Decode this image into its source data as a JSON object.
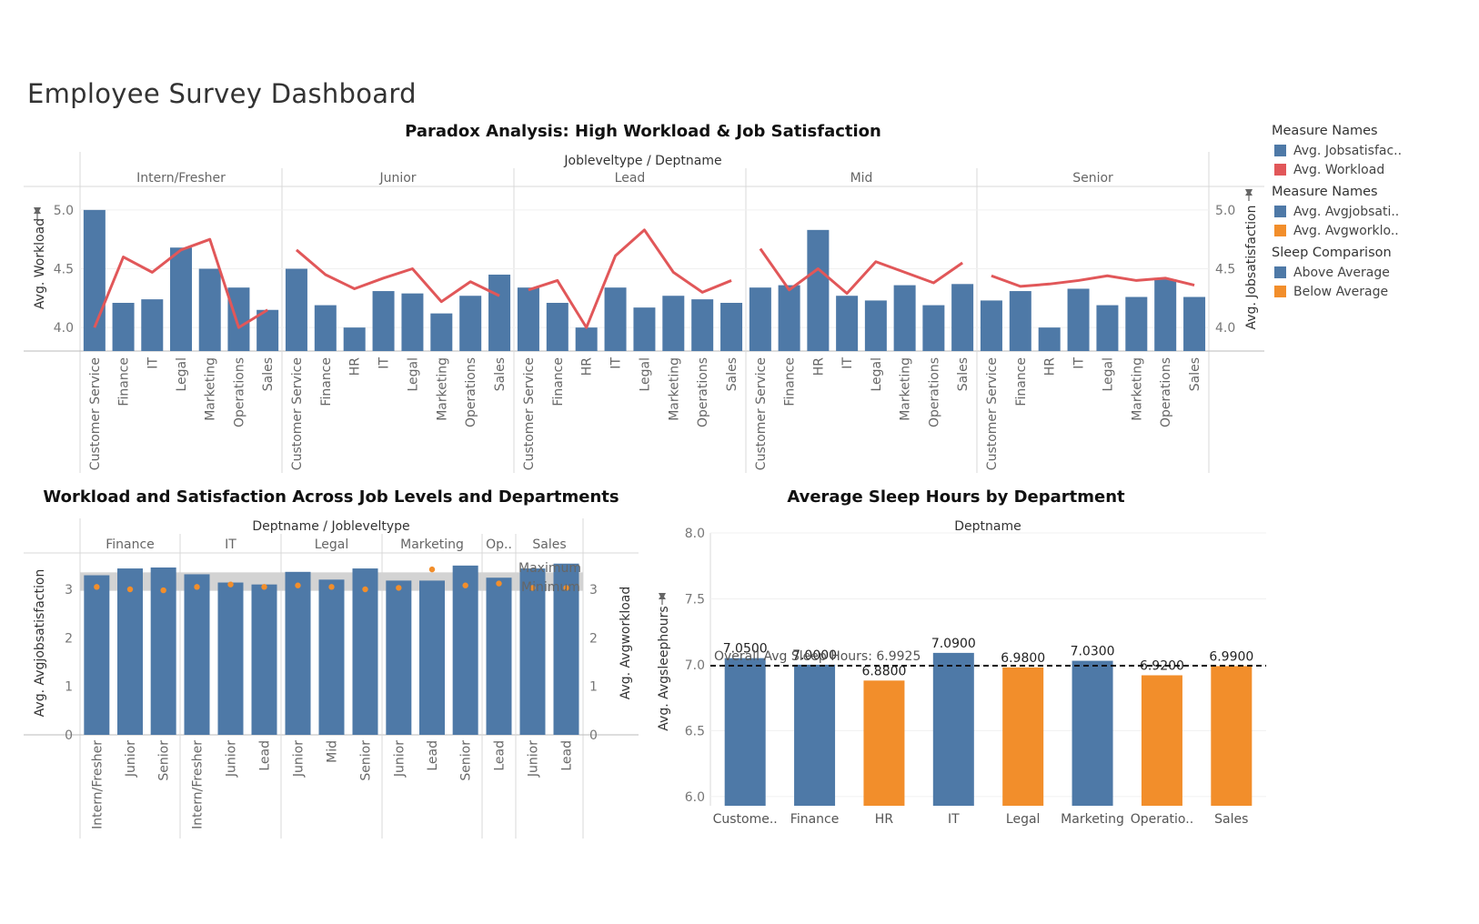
{
  "dashboard": {
    "title": "Employee Survey Dashboard"
  },
  "colors": {
    "blue": "#4e79a7",
    "red": "#e15759",
    "orange": "#f28e2b",
    "band": "#d3d3d3"
  },
  "legend": {
    "groups": [
      {
        "title": "Measure Names",
        "items": [
          {
            "label": "Avg. Jobsatisfac..",
            "color": "#4e79a7"
          },
          {
            "label": "Avg. Workload",
            "color": "#e15759"
          }
        ]
      },
      {
        "title": "Measure Names",
        "items": [
          {
            "label": "Avg. Avgjobsati..",
            "color": "#4e79a7"
          },
          {
            "label": "Avg. Avgworklo..",
            "color": "#f28e2b"
          }
        ]
      },
      {
        "title": "Sleep Comparison",
        "items": [
          {
            "label": "Above Average",
            "color": "#4e79a7"
          },
          {
            "label": "Below Average",
            "color": "#f28e2b"
          }
        ]
      }
    ]
  },
  "chart_data": [
    {
      "type": "bar",
      "title": "Paradox Analysis: High Workload & Job Satisfaction",
      "header": "Jobleveltype / Deptname",
      "ylabel_left": "Avg. Workload",
      "ylabel_right": "Avg. Jobsatisfaction",
      "left_ticks": [
        "5.0",
        "4.5",
        "4.0"
      ],
      "right_ticks": [
        "5.0",
        "4.5",
        "4.0"
      ],
      "ylim": [
        3.8,
        5.2
      ],
      "bar_measure": "Avg. Jobsatisfaction",
      "line_measure": "Avg. Workload",
      "groups": [
        {
          "name": "Intern/Fresher",
          "categories": [
            "Customer Service",
            "Finance",
            "IT",
            "Legal",
            "Marketing",
            "Operations",
            "Sales"
          ],
          "bars": [
            5.0,
            4.21,
            4.24,
            4.68,
            4.5,
            4.34,
            4.15
          ],
          "line": [
            4.0,
            4.6,
            4.47,
            4.66,
            4.75,
            4.0,
            4.15
          ]
        },
        {
          "name": "Junior",
          "categories": [
            "Customer Service",
            "Finance",
            "HR",
            "IT",
            "Legal",
            "Marketing",
            "Operations",
            "Sales"
          ],
          "bars": [
            4.5,
            4.19,
            4.0,
            4.31,
            4.29,
            4.12,
            4.27,
            4.45
          ],
          "line": [
            4.66,
            4.45,
            4.33,
            4.42,
            4.5,
            4.22,
            4.39,
            4.27
          ]
        },
        {
          "name": "Lead",
          "categories": [
            "Customer Service",
            "Finance",
            "HR",
            "IT",
            "Legal",
            "Marketing",
            "Operations",
            "Sales"
          ],
          "bars": [
            4.34,
            4.21,
            4.0,
            4.34,
            4.17,
            4.27,
            4.24,
            4.21
          ],
          "line": [
            4.32,
            4.4,
            4.0,
            4.61,
            4.83,
            4.47,
            4.3,
            4.4
          ]
        },
        {
          "name": "Mid",
          "categories": [
            "Customer Service",
            "Finance",
            "HR",
            "IT",
            "Legal",
            "Marketing",
            "Operations",
            "Sales"
          ],
          "bars": [
            4.34,
            4.36,
            4.83,
            4.27,
            4.23,
            4.36,
            4.19,
            4.37
          ],
          "line": [
            4.67,
            4.32,
            4.5,
            4.29,
            4.56,
            4.47,
            4.38,
            4.55
          ]
        },
        {
          "name": "Senior",
          "categories": [
            "Customer Service",
            "Finance",
            "HR",
            "IT",
            "Legal",
            "Marketing",
            "Operations",
            "Sales"
          ],
          "bars": [
            4.23,
            4.31,
            4.0,
            4.33,
            4.19,
            4.26,
            4.41,
            4.26
          ],
          "line": [
            4.44,
            4.35,
            4.37,
            4.4,
            4.44,
            4.4,
            4.42,
            4.36
          ]
        }
      ]
    },
    {
      "type": "bar",
      "title": "Workload and Satisfaction Across Job Levels and Departments",
      "header": "Deptname / Jobleveltype",
      "ylabel_left": "Avg. Avgjobsatisfaction",
      "ylabel_right": "Avg. Avgworkload",
      "ticks": [
        "3",
        "2",
        "1",
        "0"
      ],
      "ylim": [
        0,
        3.75
      ],
      "band": {
        "max_label": "Maximum",
        "min_label": "Minimum",
        "max": 3.35,
        "min": 2.97
      },
      "groups": [
        {
          "name": "Finance",
          "categories": [
            "Intern/Fresher",
            "Junior",
            "Senior"
          ],
          "bars": [
            3.29,
            3.43,
            3.45
          ],
          "dots": [
            3.05,
            3.0,
            2.98
          ]
        },
        {
          "name": "IT",
          "categories": [
            "Intern/Fresher",
            "Junior",
            "Lead"
          ],
          "bars": [
            3.31,
            3.14,
            3.1
          ],
          "dots": [
            3.05,
            3.1,
            3.05
          ]
        },
        {
          "name": "Legal",
          "categories": [
            "Junior",
            "Mid",
            "Senior"
          ],
          "bars": [
            3.36,
            3.2,
            3.43
          ],
          "dots": [
            3.08,
            3.05,
            3.0
          ]
        },
        {
          "name": "Marketing",
          "categories": [
            "Junior",
            "Lead",
            "Senior"
          ],
          "bars": [
            3.18,
            3.18,
            3.49
          ],
          "dots": [
            3.03,
            3.41,
            3.08
          ]
        },
        {
          "name": "Op..",
          "categories": [
            "Lead"
          ],
          "bars": [
            3.24
          ],
          "dots": [
            3.12
          ]
        },
        {
          "name": "Sales",
          "categories": [
            "Junior",
            "Lead"
          ],
          "bars": [
            3.43,
            3.53
          ],
          "dots": [
            3.03,
            3.03
          ]
        }
      ]
    },
    {
      "type": "bar",
      "title": "Average Sleep Hours by Department",
      "header": "Deptname",
      "ylabel": "Avg. Avgsleephours",
      "ticks": [
        "8.0",
        "7.5",
        "7.0",
        "6.5",
        "6.0"
      ],
      "ylim": [
        5.93,
        8.0
      ],
      "reference_line": {
        "value": 6.9925,
        "label": "Overall Avg Sleep Hours: 6.9925"
      },
      "categories": [
        "Custome..",
        "Finance",
        "HR",
        "IT",
        "Legal",
        "Marketing",
        "Operatio..",
        "Sales"
      ],
      "values": [
        7.05,
        7.0,
        6.88,
        7.09,
        6.98,
        7.03,
        6.92,
        6.99
      ],
      "labels": [
        "7.0500",
        "7.0000",
        "6.8800",
        "7.0900",
        "6.9800",
        "7.0300",
        "6.9200",
        "6.9900"
      ],
      "comparison": [
        "Above Average",
        "Above Average",
        "Below Average",
        "Above Average",
        "Below Average",
        "Above Average",
        "Below Average",
        "Below Average"
      ]
    }
  ]
}
